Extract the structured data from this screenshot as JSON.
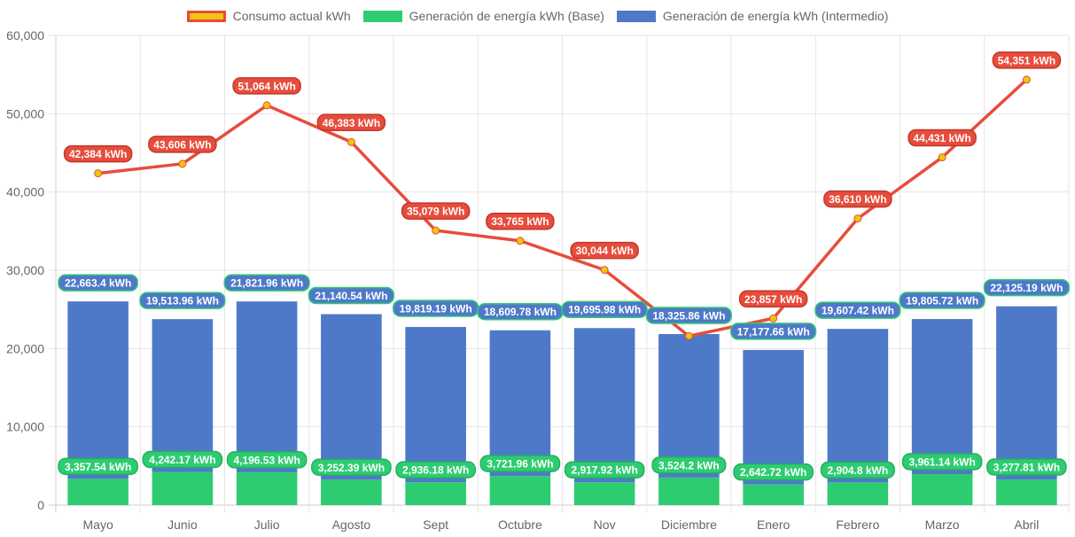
{
  "chart_data": {
    "type": "bar",
    "stacked": true,
    "title": "",
    "xlabel": "",
    "ylabel": "",
    "ylim": [
      0,
      60000
    ],
    "yticks": [
      0,
      10000,
      20000,
      30000,
      40000,
      50000,
      60000
    ],
    "ytick_labels": [
      "0",
      "10,000",
      "20,000",
      "30,000",
      "40,000",
      "50,000",
      "60,000"
    ],
    "grid": true,
    "legend_position": "top",
    "categories": [
      "Mayo",
      "Junio",
      "Julio",
      "Agosto",
      "Sept",
      "Octubre",
      "Nov",
      "Diciembre",
      "Enero",
      "Febrero",
      "Marzo",
      "Abril"
    ],
    "series": [
      {
        "name": "Consumo actual kWh",
        "type": "line",
        "color": "#e74c3c",
        "point_color": "#f1c40f",
        "values": [
          42384,
          43606,
          51064,
          46383,
          35079,
          33765,
          30044,
          21600,
          23857,
          36610,
          44431,
          54351
        ],
        "labels": [
          "42,384 kWh",
          "43,606 kWh",
          "51,064 kWh",
          "46,383 kWh",
          "35,079 kWh",
          "33,765 kWh",
          "30,044 kWh",
          "",
          "23,857 kWh",
          "36,610 kWh",
          "44,431 kWh",
          "54,351 kWh"
        ]
      },
      {
        "name": "Generación de energía kWh (Base)",
        "type": "bar",
        "color": "#2ecc71",
        "values": [
          3357.54,
          4242.17,
          4196.53,
          3252.39,
          2936.18,
          3721.96,
          2917.92,
          3524.2,
          2642.72,
          2904.8,
          3961.14,
          3277.81
        ],
        "labels": [
          "3,357.54 kWh",
          "4,242.17 kWh",
          "4,196.53 kWh",
          "3,252.39 kWh",
          "2,936.18 kWh",
          "3,721.96 kWh",
          "2,917.92 kWh",
          "3,524.2 kWh",
          "2,642.72 kWh",
          "2,904.8 kWh",
          "3,961.14 kWh",
          "3,277.81 kWh"
        ]
      },
      {
        "name": "Generación de energía kWh (Intermedio)",
        "type": "bar",
        "color": "#4e79c9",
        "values": [
          22663.4,
          19513.96,
          21821.96,
          21140.54,
          19819.19,
          18609.78,
          19695.98,
          18325.86,
          17177.66,
          19607.42,
          19805.72,
          22125.19
        ],
        "labels": [
          "22,663.4 kWh",
          "19,513.96 kWh",
          "21,821.96 kWh",
          "21,140.54 kWh",
          "19,819.19 kWh",
          "18,609.78 kWh",
          "19,695.98 kWh",
          "18,325.86 kWh",
          "17,177.66 kWh",
          "19,607.42 kWh",
          "19,805.72 kWh",
          "22,125.19 kWh"
        ]
      }
    ]
  },
  "legend": {
    "items": [
      {
        "label": "Consumo actual kWh",
        "fill": "#f1c40f",
        "border": "#e74c3c"
      },
      {
        "label": "Generación de energía kWh (Base)",
        "fill": "#2ecc71",
        "border": "#2ecc71"
      },
      {
        "label": "Generación de energía kWh (Intermedio)",
        "fill": "#4e79c9",
        "border": "#4e79c9"
      }
    ]
  },
  "colors": {
    "grid": "#e5e5e5",
    "axis": "#cccccc",
    "tick_text": "#666666",
    "red_label_bg": "#e74c3c",
    "red_label_border": "#c0392b",
    "green_label_bg": "#2ecc71",
    "green_label_border": "#27ae60",
    "blue_label_bg": "#4e79c9",
    "blue_label_border": "#2ecc71"
  }
}
